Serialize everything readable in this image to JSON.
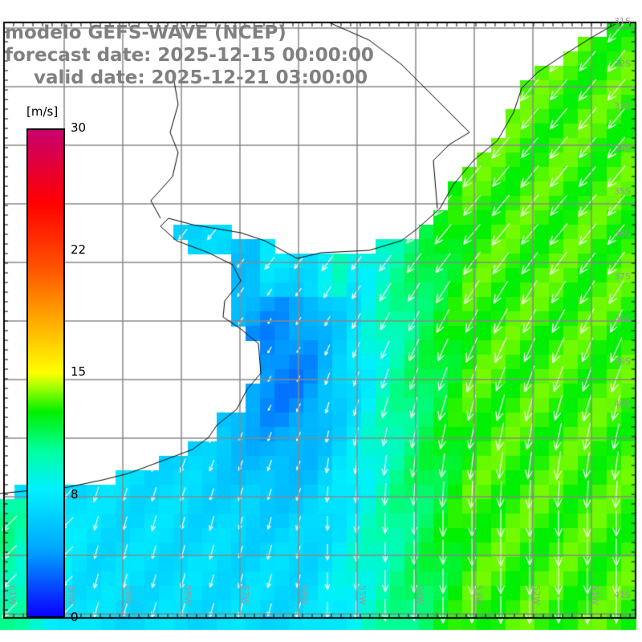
{
  "title": {
    "line1": "modelo GEFS-WAVE (NCEP)",
    "line2": "forecast date: 2025-12-15 00:00:00",
    "line3": "valid date: 2025-12-21 03:00:00"
  },
  "colorbar": {
    "unit": "[m/s]",
    "min": 0,
    "max": 30,
    "labels": [
      "30",
      "22",
      "15",
      "8",
      "0"
    ]
  },
  "lat_labels": [
    "31S",
    "32S",
    "33S",
    "34S",
    "35S",
    "36S",
    "37S",
    "38S",
    "39S",
    "40S",
    "41S"
  ],
  "lon_labels": [
    "61W",
    "60W",
    "59W",
    "58W",
    "57W",
    "56W",
    "55W",
    "54W",
    "53W",
    "52W",
    "51W"
  ],
  "colors": {
    "land": "#ffffff",
    "grid": "#888888",
    "arrow": "#ffffff",
    "coast": "#000000"
  }
}
